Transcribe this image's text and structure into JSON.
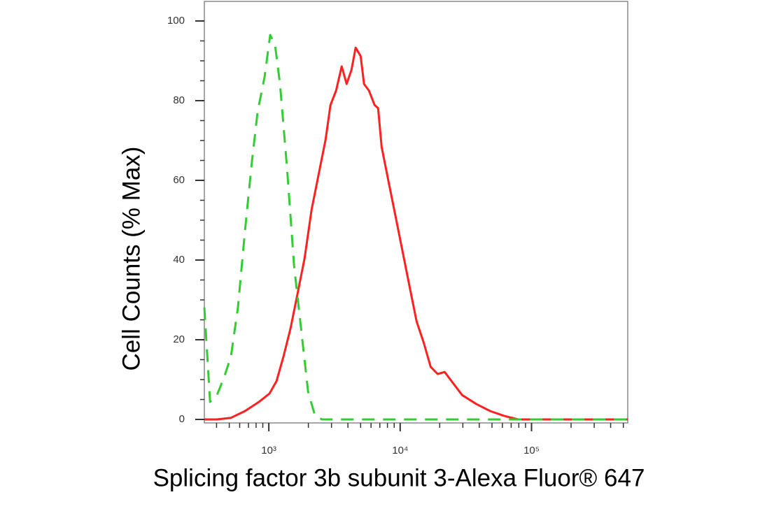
{
  "chart_data": {
    "type": "line",
    "xlabel": "Splicing factor 3b subunit 3-Alexa Fluor® 647",
    "ylabel": "Cell Counts (% Max)",
    "xscale": "log",
    "xlim": [
      323,
      540000
    ],
    "ylim": [
      0,
      100
    ],
    "xticks": [
      {
        "value": 1000,
        "label": "10³"
      },
      {
        "value": 10000,
        "label": "10⁴"
      },
      {
        "value": 100000,
        "label": "10⁵"
      }
    ],
    "xminorticks": [
      400,
      500,
      600,
      700,
      800,
      900,
      2000,
      3000,
      4000,
      5000,
      6000,
      7000,
      8000,
      9000,
      20000,
      30000,
      40000,
      50000,
      60000,
      70000,
      80000,
      90000,
      200000,
      300000,
      400000,
      500000
    ],
    "yticks": [
      0,
      20,
      40,
      60,
      80,
      100
    ],
    "yminorticks": [
      5,
      10,
      15,
      25,
      30,
      35,
      45,
      50,
      55,
      65,
      70,
      75,
      85,
      90,
      95
    ],
    "series": [
      {
        "color": "#ff2020",
        "dashed": false,
        "x": [
          323,
          403,
          515,
          659,
          842,
          1012,
          1144,
          1294,
          1463,
          1655,
          1871,
          2115,
          2392,
          2704,
          2946,
          3251,
          3589,
          3910,
          4259,
          4583,
          5000,
          5309,
          5794,
          6385,
          6792,
          7224,
          8170,
          9235,
          10440,
          11800,
          13340,
          15090,
          17060,
          19280,
          21800,
          24640,
          29650,
          37900,
          48420,
          61900,
          79200,
          101100,
          165600,
          540000
        ],
        "values": [
          0,
          0,
          0.4,
          2.1,
          4.4,
          6.5,
          9.6,
          15.8,
          22.8,
          31.6,
          40.4,
          52.6,
          61.4,
          70.2,
          78.9,
          82.5,
          88.6,
          84.2,
          87.7,
          93.3,
          91.2,
          84.2,
          82.5,
          78.9,
          78.1,
          68.4,
          59.6,
          50.9,
          42.1,
          33.3,
          24.6,
          19.3,
          13.2,
          11.4,
          11.9,
          9.6,
          6.1,
          3.9,
          2.1,
          0.9,
          0,
          0,
          0,
          0
        ]
      },
      {
        "color": "#33cc33",
        "dashed": true,
        "x": [
          323,
          357,
          403,
          456,
          515,
          582,
          659,
          745,
          822,
          929,
          1025,
          1117,
          1217,
          1376,
          1556,
          1759,
          1989,
          2249,
          2543,
          540000
        ],
        "values": [
          28.1,
          4.4,
          6.1,
          10.5,
          15.8,
          28.1,
          47.4,
          64.9,
          77.2,
          86,
          96.5,
          93.9,
          84.2,
          63.2,
          38.6,
          22.8,
          7,
          0.9,
          0,
          0
        ]
      }
    ]
  }
}
